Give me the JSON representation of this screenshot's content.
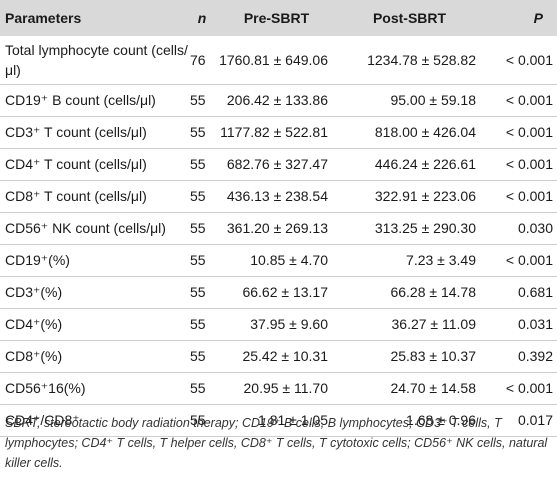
{
  "table": {
    "headers": [
      "Parameters",
      "n",
      "Pre-SBRT",
      "Post-SBRT",
      "P"
    ],
    "rows": [
      {
        "param": "Total lymphocyte count (cells/μl)",
        "n": "76",
        "pre": "1760.81 ± 649.06",
        "post": "1234.78 ± 528.82",
        "p": "< 0.001"
      },
      {
        "param": "CD19⁺ B count (cells/μl)",
        "n": "55",
        "pre": "206.42 ± 133.86",
        "post": "95.00 ± 59.18",
        "p": "< 0.001"
      },
      {
        "param": "CD3⁺ T count (cells/μl)",
        "n": "55",
        "pre": "1177.82 ± 522.81",
        "post": "818.00 ± 426.04",
        "p": "< 0.001"
      },
      {
        "param": "CD4⁺ T count (cells/μl)",
        "n": "55",
        "pre": "682.76 ± 327.47",
        "post": "446.24 ± 226.61",
        "p": "< 0.001"
      },
      {
        "param": "CD8⁺ T count (cells/μl)",
        "n": "55",
        "pre": "436.13 ± 238.54",
        "post": "322.91 ± 223.06",
        "p": "< 0.001"
      },
      {
        "param": "CD56⁺ NK count (cells/μl)",
        "n": "55",
        "pre": "361.20 ± 269.13",
        "post": "313.25 ± 290.30",
        "p": "0.030"
      },
      {
        "param": "CD19⁺(%)",
        "n": "55",
        "pre": "10.85 ± 4.70",
        "post": "7.23 ± 3.49",
        "p": "< 0.001"
      },
      {
        "param": "CD3⁺(%)",
        "n": "55",
        "pre": "66.62 ± 13.17",
        "post": "66.28 ± 14.78",
        "p": "0.681"
      },
      {
        "param": "CD4⁺(%)",
        "n": "55",
        "pre": "37.95 ± 9.60",
        "post": "36.27 ± 11.09",
        "p": "0.031"
      },
      {
        "param": "CD8⁺(%)",
        "n": "55",
        "pre": "25.42 ± 10.31",
        "post": "25.83 ± 10.37",
        "p": "0.392"
      },
      {
        "param": "CD56⁺16(%)",
        "n": "55",
        "pre": "20.95 ± 11.70",
        "post": "24.70 ± 14.58",
        "p": "< 0.001"
      },
      {
        "param": "CD4⁺/CD8⁺",
        "n": "55",
        "pre": "1.81 ± 1.05",
        "post": "1.68 ± 0.96",
        "p": "0.017"
      }
    ]
  },
  "footnote": "SBRT, stereotactic body radiation therapy; CD19⁺ B cells, B lymphocytes; CD3⁺ T cells, T lymphocytes; CD4⁺ T cells, T helper cells, CD8⁺ T cells, T cytotoxic cells; CD56⁺ NK cells, natural killer cells.",
  "colors": {
    "header_bg": "#d9d9d9",
    "rule": "#cfcfcf"
  }
}
